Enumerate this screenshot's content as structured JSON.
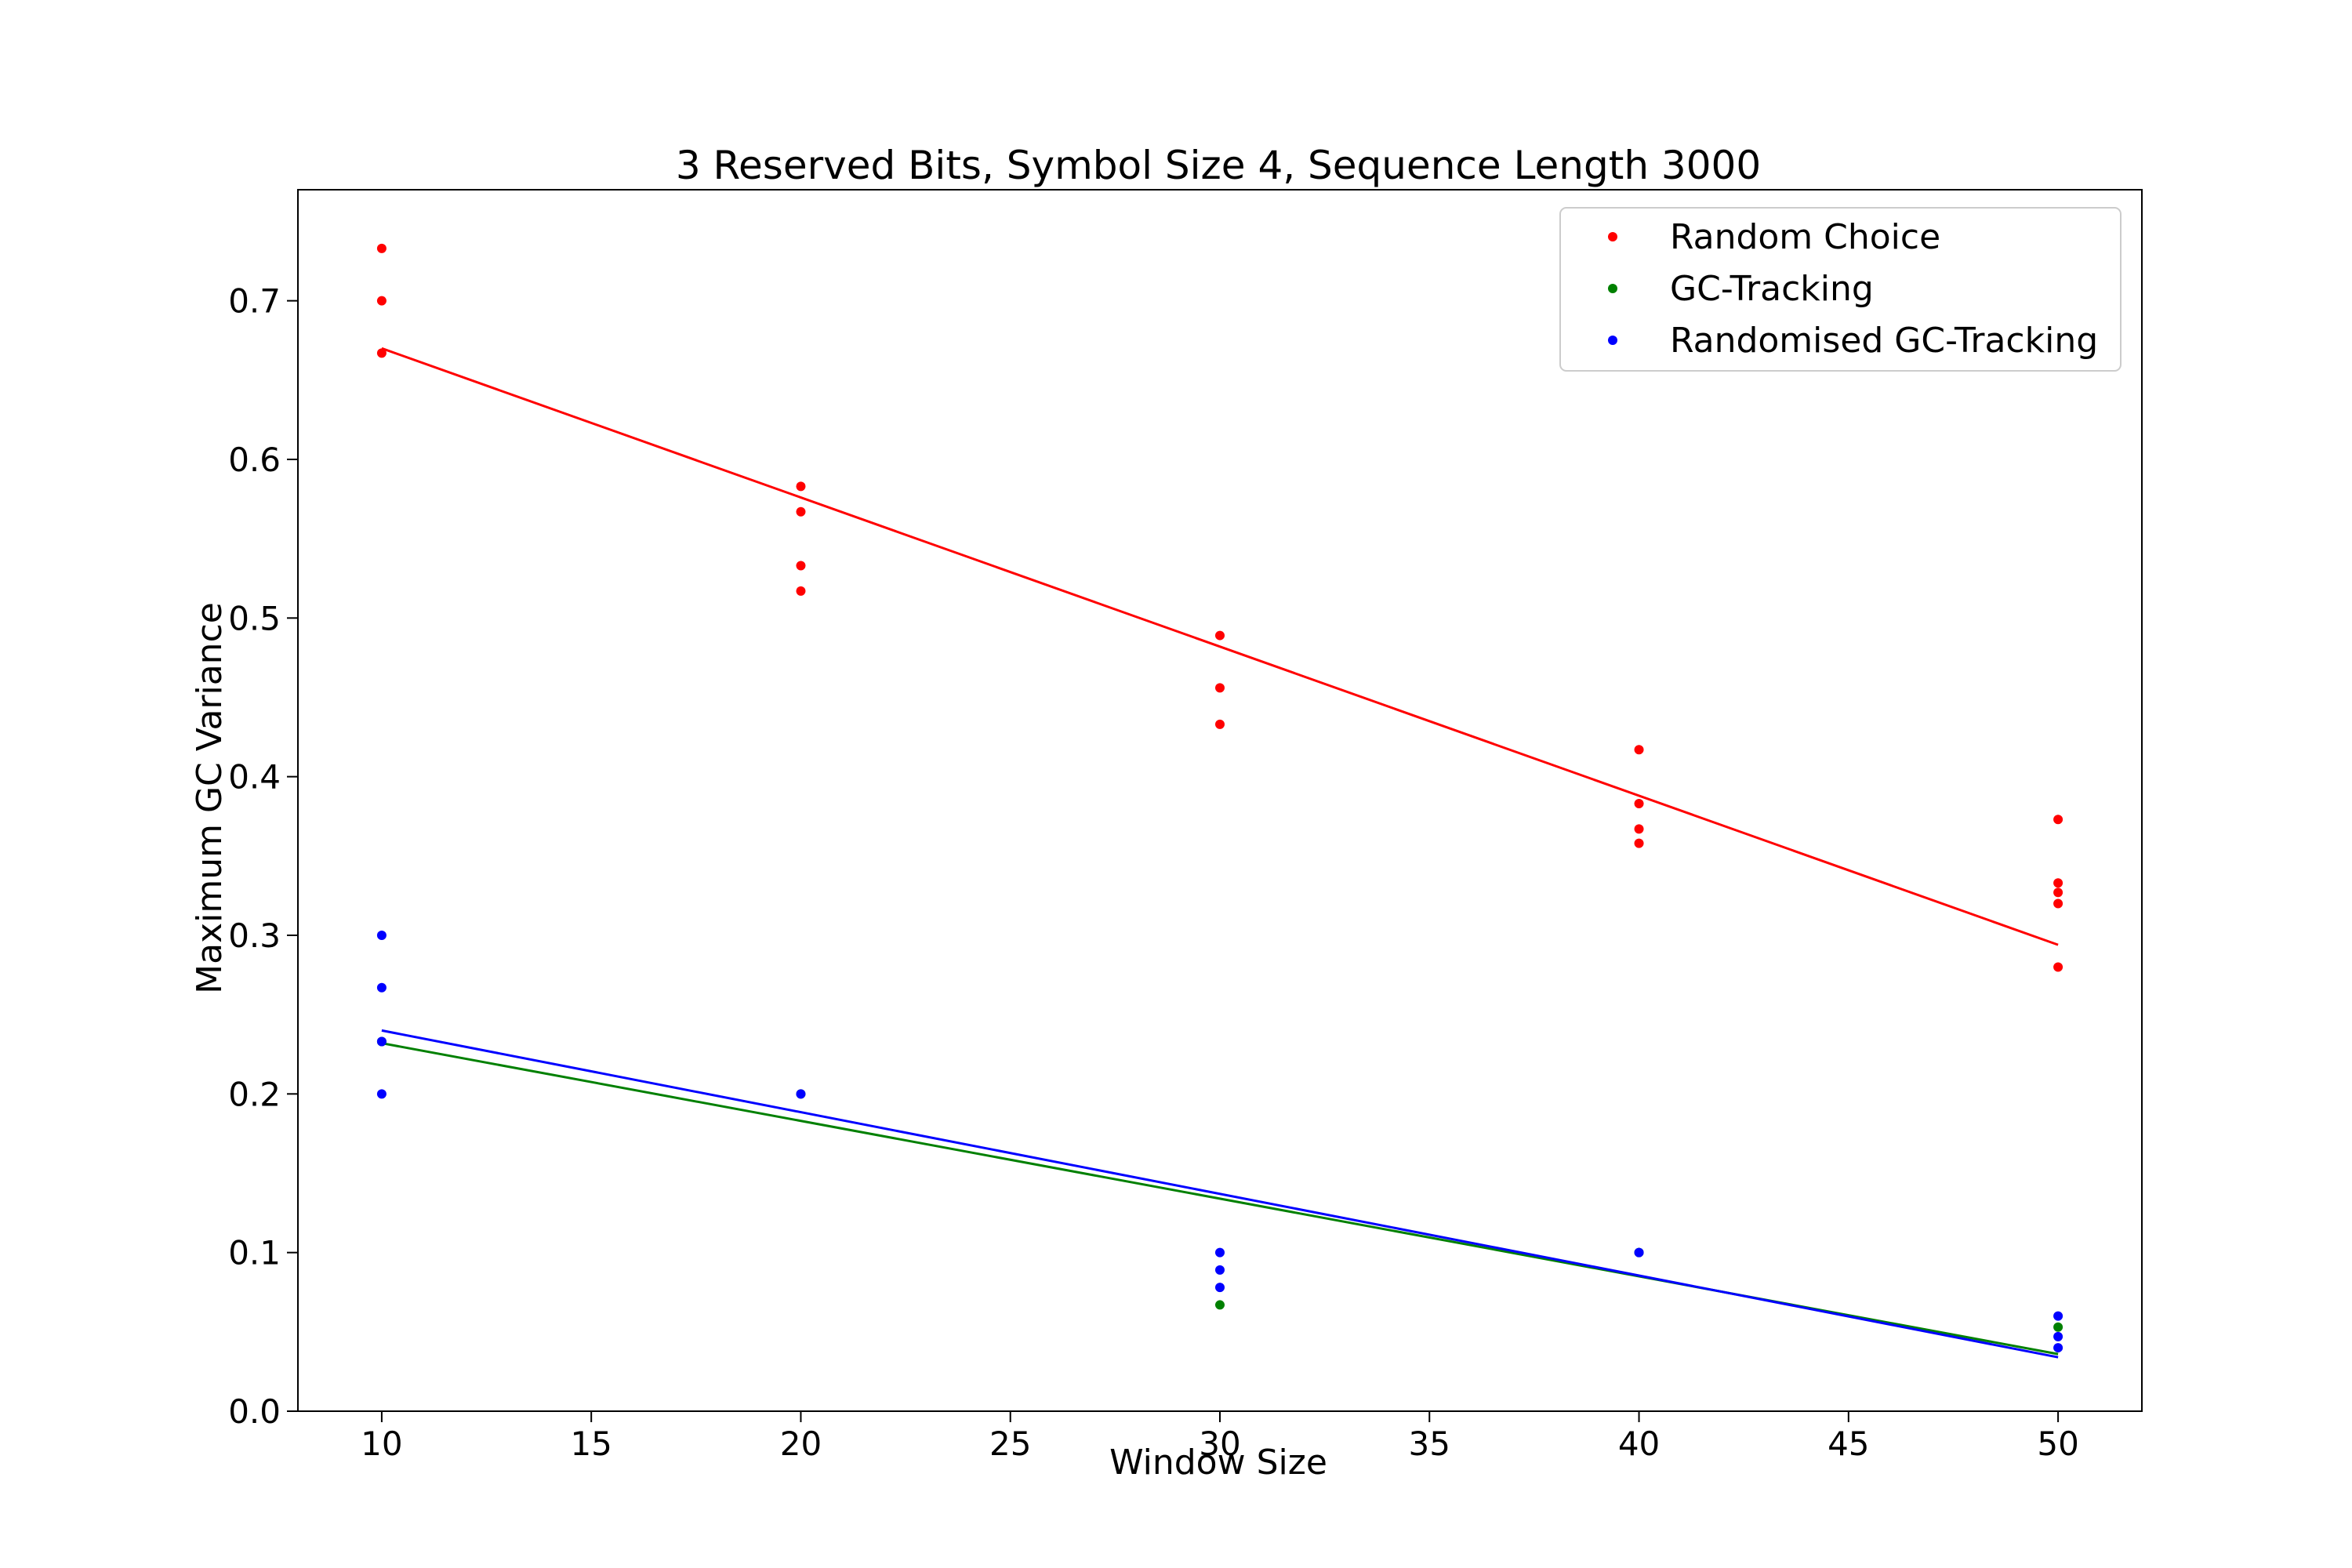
{
  "chart_data": {
    "type": "scatter",
    "title": "3 Reserved Bits, Symbol Size 4, Sequence Length 3000",
    "xlabel": "Window Size",
    "ylabel": "Maximum GC Variance",
    "xlim": [
      8,
      52
    ],
    "ylim": [
      0,
      0.77
    ],
    "xticks": [
      10,
      15,
      20,
      25,
      30,
      35,
      40,
      45,
      50
    ],
    "xtick_labels": [
      "10",
      "15",
      "20",
      "25",
      "30",
      "35",
      "40",
      "45",
      "50"
    ],
    "yticks": [
      0,
      0.1,
      0.2,
      0.3,
      0.4,
      0.5,
      0.6,
      0.7
    ],
    "ytick_labels": [
      "0.0",
      "0.1",
      "0.2",
      "0.3",
      "0.4",
      "0.5",
      "0.6",
      "0.7"
    ],
    "grid": false,
    "legend_position": "top-right",
    "series": [
      {
        "name": "Random Choice",
        "color": "#ff0000",
        "points": [
          [
            10,
            0.733
          ],
          [
            10,
            0.7
          ],
          [
            10,
            0.667
          ],
          [
            20,
            0.583
          ],
          [
            20,
            0.567
          ],
          [
            20,
            0.533
          ],
          [
            20,
            0.517
          ],
          [
            30,
            0.489
          ],
          [
            30,
            0.456
          ],
          [
            30,
            0.433
          ],
          [
            40,
            0.417
          ],
          [
            40,
            0.383
          ],
          [
            40,
            0.367
          ],
          [
            40,
            0.358
          ],
          [
            50,
            0.373
          ],
          [
            50,
            0.333
          ],
          [
            50,
            0.327
          ],
          [
            50,
            0.32
          ],
          [
            50,
            0.28
          ]
        ],
        "trend": [
          [
            10,
            0.67
          ],
          [
            50,
            0.294
          ]
        ]
      },
      {
        "name": "GC-Tracking",
        "color": "#008000",
        "points": [
          [
            10,
            0.233
          ],
          [
            20,
            0.2
          ],
          [
            30,
            0.067
          ],
          [
            40,
            0.1
          ],
          [
            50,
            0.053
          ]
        ],
        "trend": [
          [
            10,
            0.232
          ],
          [
            50,
            0.036
          ]
        ]
      },
      {
        "name": "Randomised GC-Tracking",
        "color": "#0000ff",
        "points": [
          [
            10,
            0.3
          ],
          [
            10,
            0.267
          ],
          [
            10,
            0.233
          ],
          [
            10,
            0.2
          ],
          [
            20,
            0.2
          ],
          [
            30,
            0.1
          ],
          [
            30,
            0.089
          ],
          [
            30,
            0.078
          ],
          [
            40,
            0.1
          ],
          [
            50,
            0.06
          ],
          [
            50,
            0.047
          ],
          [
            50,
            0.04
          ]
        ],
        "trend": [
          [
            10,
            0.24
          ],
          [
            50,
            0.034
          ]
        ]
      }
    ]
  }
}
